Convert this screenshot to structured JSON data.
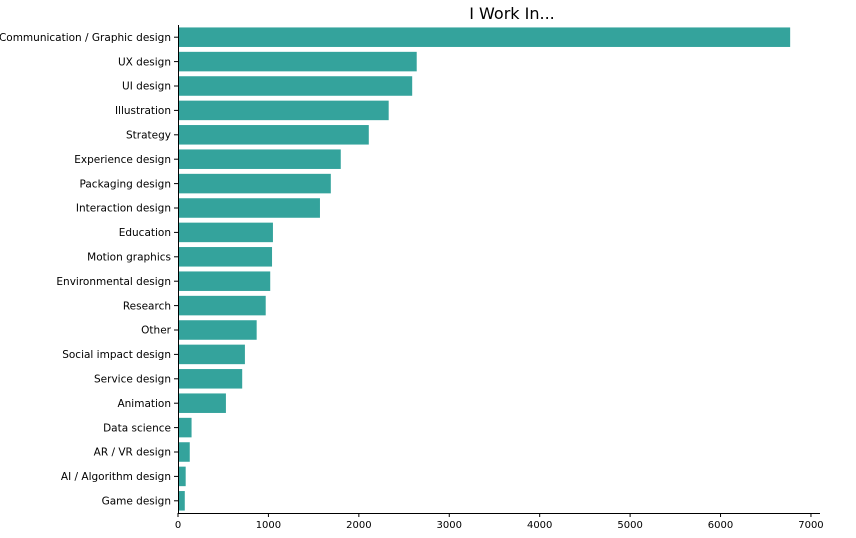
{
  "chart_data": {
    "type": "bar",
    "orientation": "horizontal",
    "title": "I Work In...",
    "xlabel": "",
    "ylabel": "",
    "xlim": [
      0,
      7100
    ],
    "xticks": [
      0,
      1000,
      2000,
      3000,
      4000,
      5000,
      6000,
      7000
    ],
    "grid": false,
    "legend": "none",
    "bar_color": "#34a39c",
    "categories": [
      "Communication / Graphic design",
      "UX design",
      "UI design",
      "Illustration",
      "Strategy",
      "Experience design",
      "Packaging design",
      "Interaction design",
      "Education",
      "Motion graphics",
      "Environmental design",
      "Research",
      "Other",
      "Social impact design",
      "Service design",
      "Animation",
      "Data science",
      "AR / VR design",
      "AI / Algorithm design",
      "Game design"
    ],
    "values": [
      6770,
      2640,
      2590,
      2330,
      2110,
      1800,
      1690,
      1570,
      1050,
      1040,
      1020,
      970,
      870,
      740,
      710,
      530,
      150,
      130,
      85,
      75
    ]
  }
}
